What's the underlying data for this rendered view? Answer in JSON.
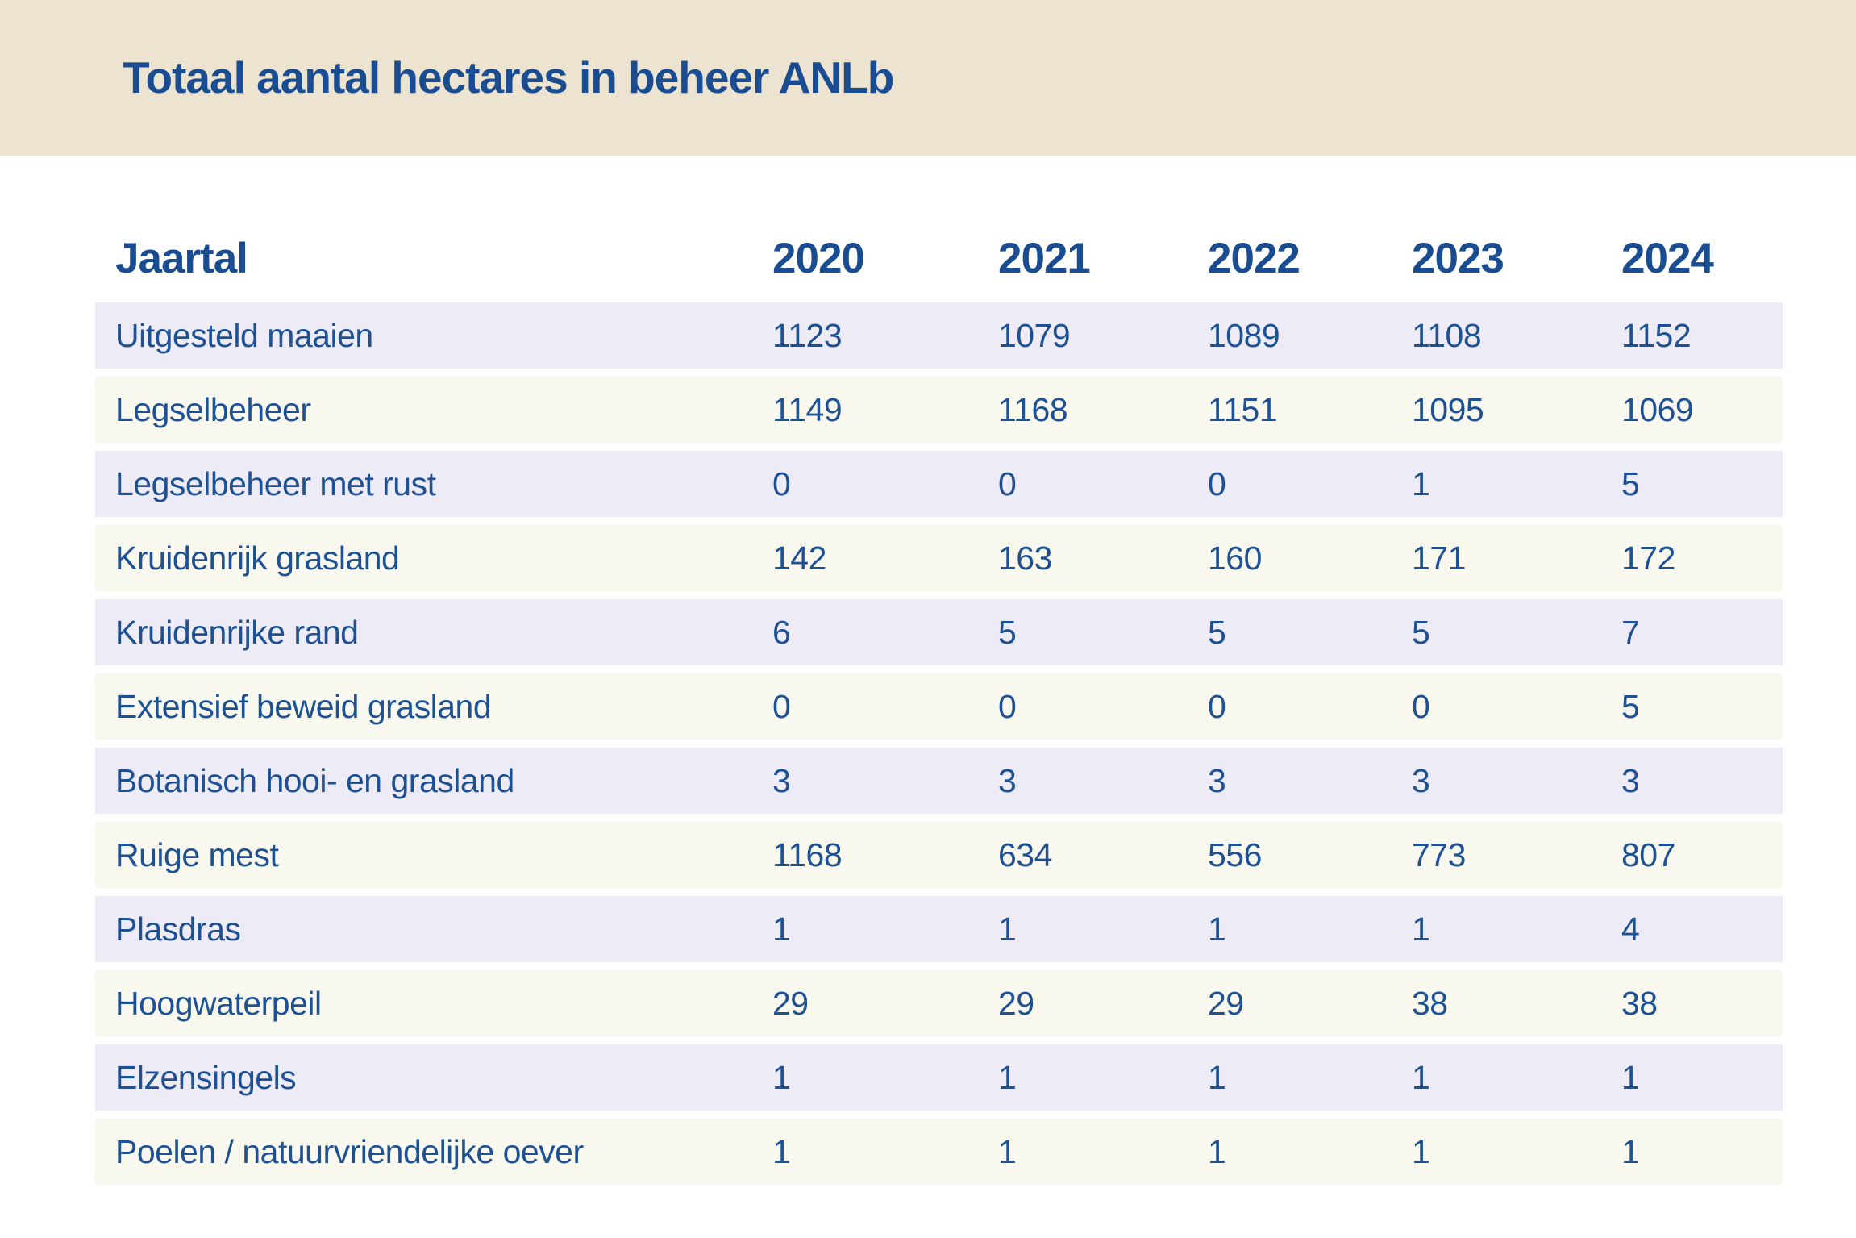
{
  "header": {
    "title": "Totaal aantal hectares in beheer ANLb"
  },
  "colors": {
    "band_background": "#ece4d0",
    "row_odd_background": "#edebf6",
    "row_even_background": "#f8f8ee",
    "text_blue": "#1a4c91"
  },
  "chart_data": {
    "type": "table",
    "title": "Totaal aantal hectares in beheer ANLb",
    "row_header_label": "Jaartal",
    "columns": [
      "2020",
      "2021",
      "2022",
      "2023",
      "2024"
    ],
    "rows": [
      {
        "label": "Uitgesteld maaien",
        "values": [
          1123,
          1079,
          1089,
          1108,
          1152
        ]
      },
      {
        "label": "Legselbeheer",
        "values": [
          1149,
          1168,
          1151,
          1095,
          1069
        ]
      },
      {
        "label": "Legselbeheer met rust",
        "values": [
          0,
          0,
          0,
          1,
          5
        ]
      },
      {
        "label": "Kruidenrijk grasland",
        "values": [
          142,
          163,
          160,
          171,
          172
        ]
      },
      {
        "label": "Kruidenrijke rand",
        "values": [
          6,
          5,
          5,
          5,
          7
        ]
      },
      {
        "label": "Extensief beweid grasland",
        "values": [
          0,
          0,
          0,
          0,
          5
        ]
      },
      {
        "label": "Botanisch hooi- en grasland",
        "values": [
          3,
          3,
          3,
          3,
          3
        ]
      },
      {
        "label": "Ruige mest",
        "values": [
          1168,
          634,
          556,
          773,
          807
        ]
      },
      {
        "label": "Plasdras",
        "values": [
          1,
          1,
          1,
          1,
          4
        ]
      },
      {
        "label": "Hoogwaterpeil",
        "values": [
          29,
          29,
          29,
          38,
          38
        ]
      },
      {
        "label": "Elzensingels",
        "values": [
          1,
          1,
          1,
          1,
          1
        ]
      },
      {
        "label": "Poelen / natuurvriendelijke oever",
        "values": [
          1,
          1,
          1,
          1,
          1
        ]
      }
    ]
  }
}
